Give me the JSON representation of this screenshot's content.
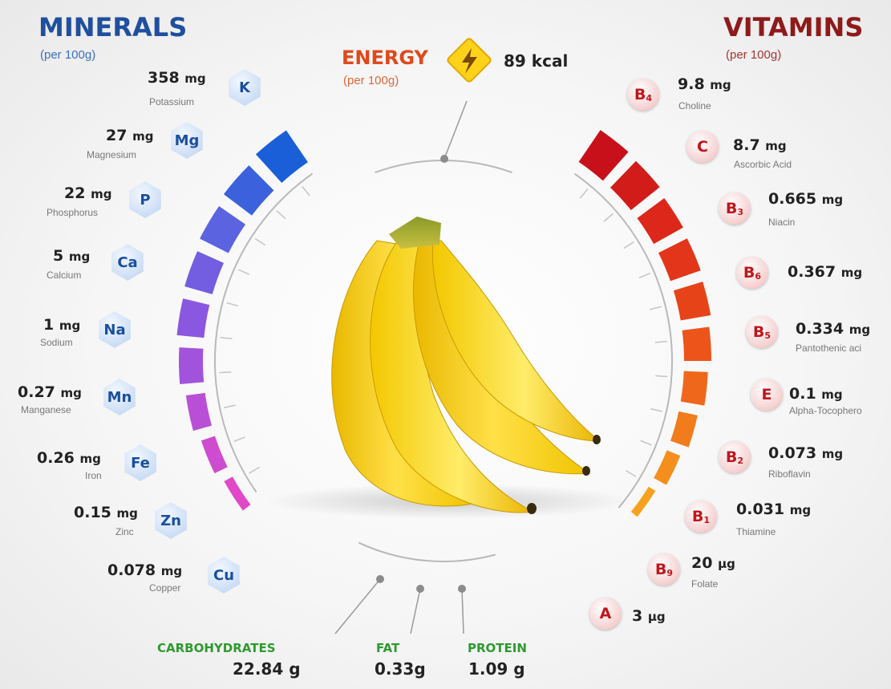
{
  "minerals": {
    "title": "MINERALS",
    "per": "(per 100g)",
    "color": "#1f4f9e",
    "items": [
      {
        "symbol": "K",
        "amount": "358",
        "unit": "mg",
        "name": "Potassium"
      },
      {
        "symbol": "Mg",
        "amount": "27",
        "unit": "mg",
        "name": "Magnesium"
      },
      {
        "symbol": "P",
        "amount": "22",
        "unit": "mg",
        "name": "Phosphorus"
      },
      {
        "symbol": "Ca",
        "amount": "5",
        "unit": "mg",
        "name": "Calcium"
      },
      {
        "symbol": "Na",
        "amount": "1",
        "unit": "mg",
        "name": "Sodium"
      },
      {
        "symbol": "Mn",
        "amount": "0.27",
        "unit": "mg",
        "name": "Manganese"
      },
      {
        "symbol": "Fe",
        "amount": "0.26",
        "unit": "mg",
        "name": "Iron"
      },
      {
        "symbol": "Zn",
        "amount": "0.15",
        "unit": "mg",
        "name": "Zinc"
      },
      {
        "symbol": "Cu",
        "amount": "0.078",
        "unit": "mg",
        "name": "Copper"
      }
    ],
    "bar_gradient": [
      "#1a5fd8",
      "#5b63e0",
      "#8a57e0",
      "#b94fd6",
      "#e048c8"
    ]
  },
  "vitamins": {
    "title": "VITAMINS",
    "per": "(per 100g)",
    "color": "#8e1a1a",
    "items": [
      {
        "letter": "B",
        "sub": "4",
        "amount": "9.8",
        "unit": "mg",
        "name": "Choline"
      },
      {
        "letter": "C",
        "sub": "",
        "amount": "8.7",
        "unit": "mg",
        "name": "Ascorbic Acid"
      },
      {
        "letter": "B",
        "sub": "3",
        "amount": "0.665",
        "unit": "mg",
        "name": "Niacin"
      },
      {
        "letter": "B",
        "sub": "6",
        "amount": "0.367",
        "unit": "mg",
        "name": ""
      },
      {
        "letter": "B",
        "sub": "5",
        "amount": "0.334",
        "unit": "mg",
        "name": "Pantothenic aci"
      },
      {
        "letter": "E",
        "sub": "",
        "amount": "0.1",
        "unit": "mg",
        "name": "Alpha-Tocophero"
      },
      {
        "letter": "B",
        "sub": "2",
        "amount": "0.073",
        "unit": "mg",
        "name": "Riboflavin"
      },
      {
        "letter": "B",
        "sub": "1",
        "amount": "0.031",
        "unit": "mg",
        "name": "Thiamine"
      },
      {
        "letter": "B",
        "sub": "9",
        "amount": "20",
        "unit": "µg",
        "name": "Folate"
      },
      {
        "letter": "A",
        "sub": "",
        "amount": "3",
        "unit": "µg",
        "name": ""
      }
    ],
    "bar_gradient": [
      "#c8101a",
      "#de2a1a",
      "#ea4a18",
      "#f2761c",
      "#f6a21e"
    ]
  },
  "energy": {
    "title": "ENERGY",
    "per": "(per 100g)",
    "value": "89 kcal",
    "title_color": "#e0481c",
    "icon": "lightning-bolt-icon"
  },
  "macros": [
    {
      "label": "CARBOHYDRATES",
      "value": "22.84 g"
    },
    {
      "label": "FAT",
      "value": "0.33g"
    },
    {
      "label": "PROTEIN",
      "value": "1.09 g"
    }
  ],
  "macro_color": "#2e9a2e"
}
